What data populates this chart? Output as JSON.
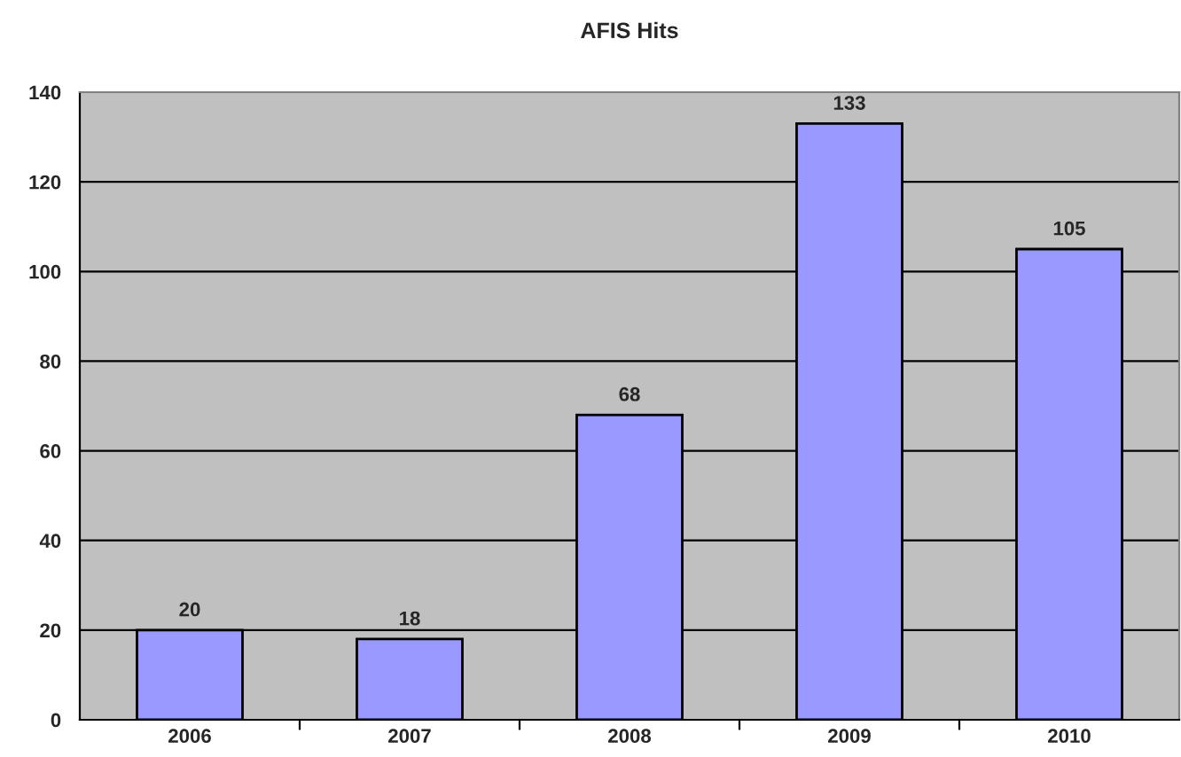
{
  "chart_data": {
    "type": "bar",
    "title": "AFIS Hits",
    "categories": [
      "2006",
      "2007",
      "2008",
      "2009",
      "2010"
    ],
    "values": [
      20,
      18,
      68,
      133,
      105
    ],
    "color": "#9999ff",
    "ylim": [
      0,
      140
    ],
    "yticks": [
      0,
      20,
      40,
      60,
      80,
      100,
      120,
      140
    ],
    "grid": "y",
    "data_labels": true
  }
}
